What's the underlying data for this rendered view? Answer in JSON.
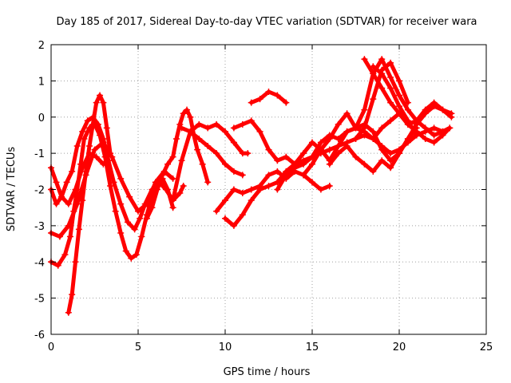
{
  "chart_data": {
    "type": "scatter",
    "title": "Day 185 of 2017, Sidereal Day-to-day VTEC variation (SDTVAR) for receiver wara",
    "xlabel": "GPS time / hours",
    "ylabel": "SDTVAR / TECUs",
    "xlim": [
      0,
      25
    ],
    "ylim": [
      -6,
      2
    ],
    "x_ticks": [
      "0",
      "5",
      "10",
      "15",
      "20",
      "25"
    ],
    "y_ticks": [
      "-6",
      "-5",
      "-4",
      "-3",
      "-2",
      "-1",
      "0",
      "1",
      "2"
    ],
    "grid": true,
    "color": "#ff0000",
    "marker": "plus",
    "series": [
      {
        "x": [
          0.0,
          0.3,
          0.6,
          0.9,
          1.2,
          1.5,
          1.8,
          2.1,
          2.4,
          2.7,
          3.0,
          3.3,
          3.6,
          4.0,
          4.4,
          4.8,
          5.1,
          5.4,
          5.8,
          6.2,
          6.6,
          7.0,
          7.4,
          7.6
        ],
        "y": [
          -2.0,
          -2.4,
          -2.2,
          -1.8,
          -1.5,
          -0.8,
          -0.4,
          -0.1,
          0.0,
          -0.2,
          -0.6,
          -1.2,
          -1.8,
          -2.4,
          -2.9,
          -3.1,
          -2.8,
          -2.4,
          -2.0,
          -1.8,
          -2.0,
          -2.3,
          -2.1,
          -1.9
        ]
      },
      {
        "x": [
          0.0,
          0.4,
          0.8,
          1.1,
          1.3,
          1.5,
          1.7,
          1.9,
          2.2,
          2.5,
          2.8,
          3.1,
          3.4,
          3.7,
          4.0,
          4.3,
          4.6,
          4.9,
          5.2,
          5.5,
          5.8,
          6.1,
          6.4,
          6.7,
          7.0
        ],
        "y": [
          -4.0,
          -4.1,
          -3.8,
          -3.3,
          -2.6,
          -2.0,
          -1.3,
          -0.6,
          -0.3,
          -0.2,
          -0.5,
          -1.1,
          -1.9,
          -2.6,
          -3.2,
          -3.7,
          -3.9,
          -3.8,
          -3.3,
          -2.7,
          -2.2,
          -1.8,
          -1.7,
          -2.0,
          -2.5
        ]
      },
      {
        "x": [
          1.0,
          1.2,
          1.4,
          1.6,
          1.8,
          2.0,
          2.2,
          2.4,
          2.6,
          2.8,
          3.0,
          3.2,
          3.4
        ],
        "y": [
          -5.4,
          -4.9,
          -4.0,
          -3.1,
          -2.3,
          -1.5,
          -0.8,
          -0.2,
          0.4,
          0.6,
          0.4,
          -0.3,
          -1.0
        ]
      },
      {
        "x": [
          0.0,
          0.5,
          1.0,
          1.5,
          2.0,
          2.5,
          3.0,
          3.5,
          4.0,
          4.5,
          5.0,
          5.5,
          6.0,
          6.5,
          7.0
        ],
        "y": [
          -3.2,
          -3.3,
          -3.0,
          -2.4,
          -1.6,
          -0.9,
          -0.7,
          -1.1,
          -1.7,
          -2.2,
          -2.6,
          -2.4,
          -1.8,
          -1.5,
          -1.7
        ]
      },
      {
        "x": [
          0.0,
          0.3,
          0.6,
          1.0,
          1.4,
          1.8,
          2.2,
          2.6,
          3.0,
          3.3
        ],
        "y": [
          -1.4,
          -1.8,
          -2.2,
          -2.4,
          -2.0,
          -1.4,
          -1.0,
          -1.1,
          -1.3,
          -1.2
        ]
      },
      {
        "x": [
          5.5,
          5.8,
          6.1,
          6.4,
          6.7,
          7.0,
          7.2,
          7.4,
          7.6,
          7.8,
          8.0,
          8.2,
          8.4,
          8.7,
          9.0
        ],
        "y": [
          -2.8,
          -2.5,
          -2.0,
          -1.6,
          -1.3,
          -1.1,
          -0.6,
          -0.2,
          0.1,
          0.2,
          0.0,
          -0.5,
          -0.9,
          -1.3,
          -1.8
        ]
      },
      {
        "x": [
          7.0,
          7.5,
          8.0,
          8.5,
          9.0,
          9.5,
          10.0,
          10.5,
          11.0,
          11.3
        ],
        "y": [
          -2.3,
          -1.2,
          -0.4,
          -0.2,
          -0.3,
          -0.2,
          -0.4,
          -0.7,
          -1.0,
          -1.0
        ]
      },
      {
        "x": [
          7.5,
          8.0,
          8.5,
          9.0,
          9.5,
          10.0,
          10.5,
          11.0
        ],
        "y": [
          -0.3,
          -0.4,
          -0.6,
          -0.8,
          -1.0,
          -1.3,
          -1.5,
          -1.6
        ]
      },
      {
        "x": [
          10.0,
          10.5,
          11.0,
          11.5,
          12.0,
          12.5,
          13.0,
          13.5,
          14.0,
          14.5,
          15.0,
          15.5,
          16.0,
          16.5,
          17.0,
          17.5,
          18.0,
          18.5,
          19.0,
          19.5,
          20.0,
          20.5,
          21.0,
          21.5,
          22.0,
          22.5,
          22.9
        ],
        "y": [
          -2.8,
          -3.0,
          -2.7,
          -2.3,
          -2.0,
          -1.9,
          -1.8,
          -1.5,
          -1.3,
          -1.2,
          -1.1,
          -1.0,
          -0.9,
          -0.8,
          -0.7,
          -0.6,
          -0.5,
          -0.6,
          -0.8,
          -1.0,
          -0.9,
          -0.7,
          -0.5,
          -0.4,
          -0.3,
          -0.4,
          -0.3
        ]
      },
      {
        "x": [
          9.5,
          10.0,
          10.5,
          11.0,
          11.5,
          12.0,
          12.5,
          13.0,
          13.5,
          14.0,
          14.5,
          15.0,
          15.5,
          16.0
        ],
        "y": [
          -2.6,
          -2.3,
          -2.0,
          -2.1,
          -2.0,
          -1.9,
          -1.6,
          -1.5,
          -1.7,
          -1.5,
          -1.6,
          -1.8,
          -2.0,
          -1.9
        ]
      },
      {
        "x": [
          10.5,
          11.0,
          11.5,
          12.0,
          12.5,
          13.0,
          13.5,
          14.0,
          14.5,
          15.0,
          15.5,
          16.0,
          16.5,
          17.0,
          17.5,
          18.0,
          18.5,
          19.0,
          19.5,
          20.0,
          20.5,
          21.0,
          21.5,
          22.0,
          22.5,
          22.9
        ],
        "y": [
          -0.3,
          -0.2,
          -0.1,
          -0.4,
          -0.9,
          -1.2,
          -1.1,
          -1.3,
          -1.0,
          -0.7,
          -0.9,
          -1.2,
          -0.8,
          -0.4,
          -0.3,
          -0.4,
          -0.6,
          -0.3,
          -0.1,
          0.1,
          -0.2,
          -0.4,
          -0.6,
          -0.7,
          -0.5,
          -0.3
        ]
      },
      {
        "x": [
          11.5,
          12.0,
          12.5,
          13.0,
          13.5
        ],
        "y": [
          0.4,
          0.5,
          0.7,
          0.6,
          0.4
        ]
      },
      {
        "x": [
          13.0,
          13.5,
          14.0,
          14.5,
          15.0,
          15.5,
          16.0,
          16.5,
          17.0,
          17.5,
          18.0,
          18.5,
          19.0,
          19.5,
          20.0,
          20.5,
          21.0,
          21.5,
          22.0,
          22.5,
          23.0
        ],
        "y": [
          -2.0,
          -1.6,
          -1.4,
          -1.3,
          -1.1,
          -0.7,
          -0.5,
          -0.6,
          -0.4,
          -0.3,
          -0.2,
          -0.4,
          -0.9,
          -1.2,
          -1.0,
          -0.6,
          -0.2,
          0.1,
          0.3,
          0.2,
          0.1
        ]
      },
      {
        "x": [
          14.5,
          15.0,
          15.5,
          16.0,
          16.5,
          17.0,
          17.5,
          18.0,
          18.5,
          19.0,
          19.5,
          20.0,
          20.5,
          21.0,
          21.5,
          22.0,
          22.5
        ],
        "y": [
          -1.6,
          -1.3,
          -0.9,
          -0.6,
          -0.2,
          0.1,
          -0.3,
          0.2,
          1.2,
          1.6,
          1.1,
          0.6,
          0.2,
          -0.1,
          -0.3,
          -0.5,
          -0.4
        ]
      },
      {
        "x": [
          16.0,
          16.5,
          17.0,
          17.5,
          18.0,
          18.5,
          19.0,
          19.5,
          20.0,
          20.5,
          21.0
        ],
        "y": [
          -1.3,
          -1.0,
          -0.8,
          -1.1,
          -1.3,
          -1.5,
          -1.2,
          -1.4,
          -1.0,
          -0.6,
          -0.3
        ]
      },
      {
        "x": [
          18.0,
          18.5,
          19.0,
          19.5,
          20.0,
          20.5,
          21.0,
          21.5,
          22.0,
          22.5,
          23.0
        ],
        "y": [
          1.6,
          1.2,
          0.8,
          0.4,
          0.1,
          -0.2,
          -0.1,
          0.2,
          0.4,
          0.2,
          0.0
        ]
      },
      {
        "x": [
          18.5,
          19.0,
          19.5,
          20.0,
          20.5,
          21.0
        ],
        "y": [
          1.4,
          1.2,
          0.8,
          0.3,
          -0.1,
          -0.5
        ]
      },
      {
        "x": [
          17.5,
          18.0,
          18.5,
          19.0,
          19.5,
          20.0,
          20.5
        ],
        "y": [
          -0.6,
          -0.3,
          0.5,
          1.3,
          1.5,
          1.0,
          0.4
        ]
      }
    ]
  }
}
